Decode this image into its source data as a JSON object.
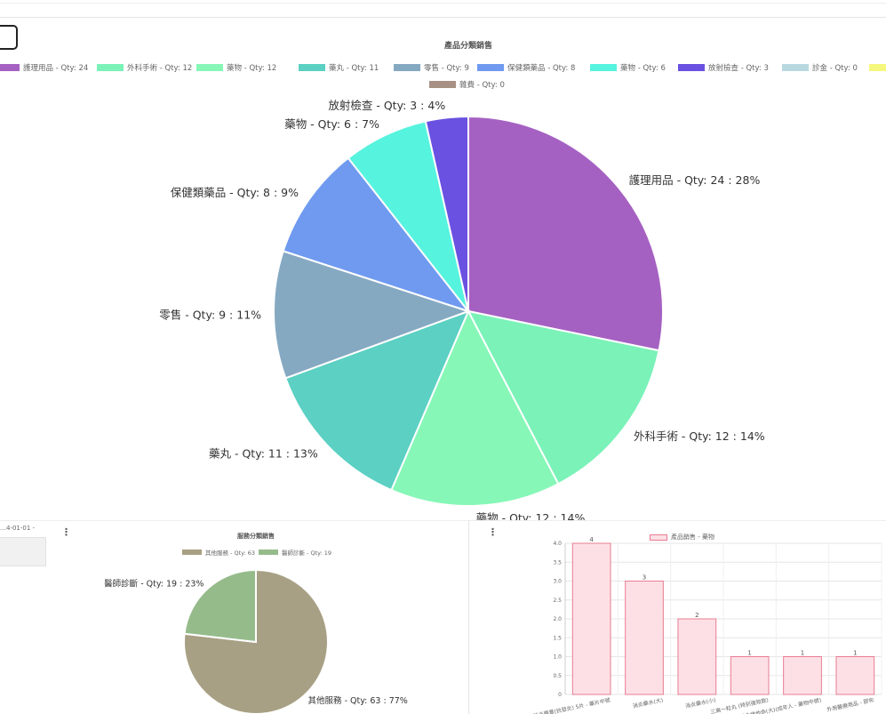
{
  "cut_header": "…4-01-01 -",
  "chart_data": [
    {
      "type": "pie",
      "title": "產品分類銷售",
      "legend_position": "top",
      "slices": [
        {
          "label": "護理用品",
          "qty": 24,
          "percent": "28%",
          "color": "#a561c2"
        },
        {
          "label": "外科手術",
          "qty": 12,
          "percent": "14%",
          "color": "#7af2b8"
        },
        {
          "label": "藥物",
          "qty": 12,
          "percent": "14%",
          "color": "#86f7b7"
        },
        {
          "label": "藥丸",
          "qty": 11,
          "percent": "13%",
          "color": "#5bd0c3"
        },
        {
          "label": "零售",
          "qty": 9,
          "percent": "11%",
          "color": "#86a9c2"
        },
        {
          "label": "保健類藥品",
          "qty": 8,
          "percent": "9%",
          "color": "#6f9af0"
        },
        {
          "label": "藥物",
          "qty": 6,
          "percent": "7%",
          "color": "#56f3de"
        },
        {
          "label": "放射檢查",
          "qty": 3,
          "percent": "4%",
          "color": "#6a51e1"
        },
        {
          "label": "診金",
          "qty": 0,
          "percent": "0%",
          "color": "#b8d8df"
        },
        {
          "label": "",
          "qty": 0,
          "percent": "0%",
          "color": "#f6f77d"
        },
        {
          "label": "雜費",
          "qty": 0,
          "percent": "0%",
          "color": "#a89085"
        }
      ]
    },
    {
      "type": "pie",
      "title": "服務分類銷售",
      "legend_position": "top",
      "slices": [
        {
          "label": "其他服務",
          "qty": 63,
          "percent": "77%",
          "color": "#a8a084"
        },
        {
          "label": "醫師診斷",
          "qty": 19,
          "percent": "23%",
          "color": "#96bb8b"
        }
      ]
    },
    {
      "type": "bar",
      "legend": "產品銷售 - 藥物",
      "ylim": [
        0,
        4.0
      ],
      "yticks": [
        "0",
        "0.5",
        "1.0",
        "1.5",
        "2.0",
        "2.5",
        "3.0",
        "3.5",
        "4.0"
      ],
      "categories": [
        "消炎藥膏(抗發炎) 5片 - 藥片中號",
        "消炎藥水(大)",
        "消炎藥水(小)",
        "三高一粒丸 (特別強效款)",
        "混合維他命(大)(成年人 - 藥物中號)",
        "外用醫療用品 - 膠布"
      ],
      "values": [
        4,
        3,
        2,
        1,
        1,
        1
      ],
      "value_labels": [
        "4",
        "3",
        "2",
        "1",
        "1",
        "1"
      ],
      "bar_color": "#fde0e6",
      "bar_border": "#e87c91"
    }
  ],
  "icons": {
    "menu": "more-vert-icon"
  }
}
